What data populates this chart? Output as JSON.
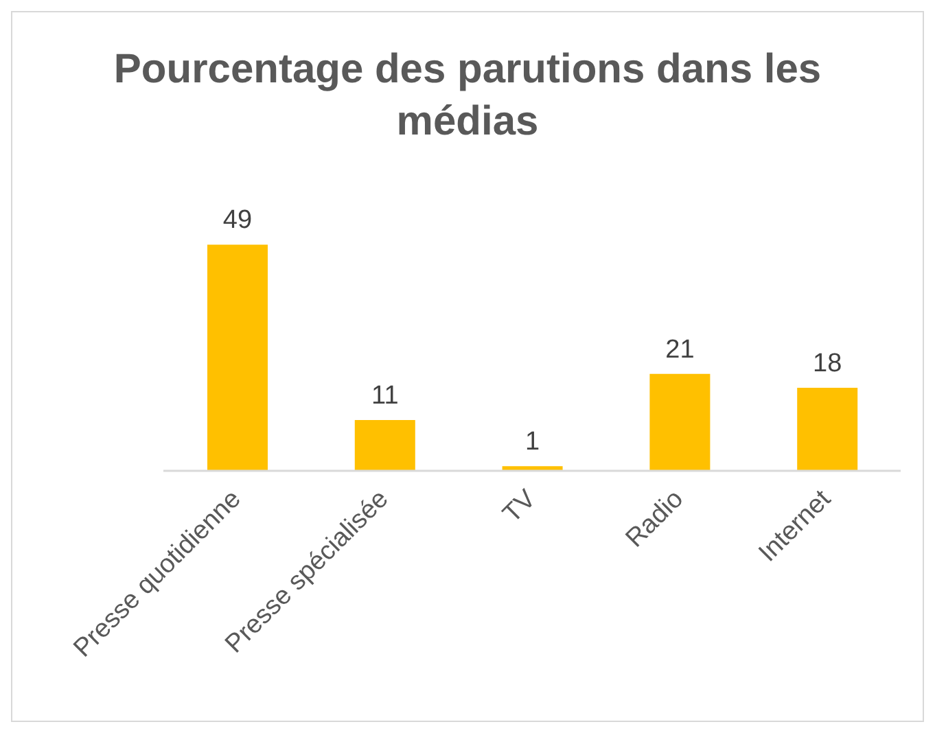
{
  "chart_data": {
    "type": "bar",
    "title": "Pourcentage des parutions dans les médias",
    "categories": [
      "Presse quotidienne",
      "Presse spécialisée",
      "TV",
      "Radio",
      "Internet"
    ],
    "values": [
      49,
      11,
      1,
      21,
      18
    ],
    "color": "#ffc000",
    "tick_labels": "x",
    "data_labels": true,
    "grid": false,
    "legend": false
  }
}
